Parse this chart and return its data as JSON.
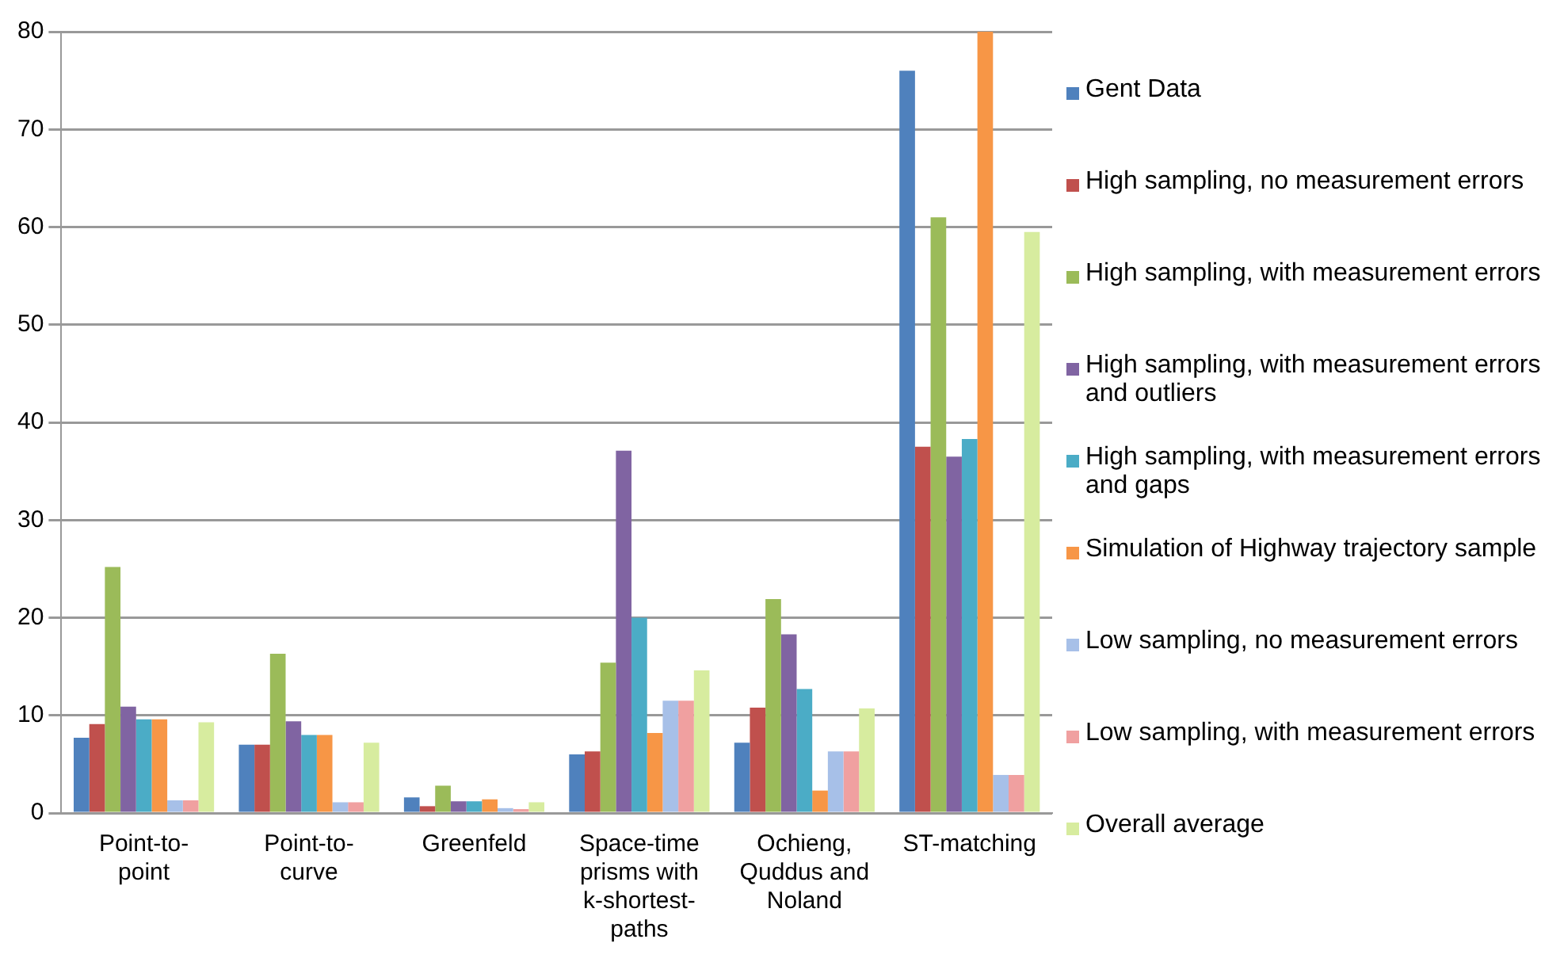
{
  "chart_data": {
    "type": "bar",
    "categories": [
      "Point-to-point",
      "Point-to-curve",
      "Greenfeld",
      "Space-time prisms with k-shortest-paths",
      "Ochieng, Quddus and Noland",
      "ST-matching"
    ],
    "series": [
      {
        "name": "Gent Data",
        "color": "#4f81bd",
        "values": [
          7.7,
          7.0,
          1.6,
          6.0,
          7.2,
          76
        ]
      },
      {
        "name": "High sampling, no measurement errors",
        "color": "#c0504d",
        "values": [
          9.1,
          7.0,
          0.7,
          6.3,
          10.8,
          37.5
        ]
      },
      {
        "name": "High sampling, with measurement errors",
        "color": "#9bbb59",
        "values": [
          25.2,
          16.3,
          2.8,
          15.4,
          21.9,
          61
        ]
      },
      {
        "name": "High sampling, with measurement errors and outliers",
        "color": "#8064a2",
        "values": [
          10.9,
          9.4,
          1.2,
          37.1,
          18.3,
          36.5
        ]
      },
      {
        "name": "High sampling, with measurement errors and gaps",
        "color": "#4bacc6",
        "values": [
          9.6,
          8.0,
          1.2,
          20.0,
          12.7,
          38.3
        ]
      },
      {
        "name": "Simulation of Highway trajectory sample",
        "color": "#f79646",
        "values": [
          9.6,
          8.0,
          1.4,
          8.2,
          2.3,
          80
        ]
      },
      {
        "name": "Low sampling, no measurement errors",
        "color": "#a7c0e8",
        "values": [
          1.3,
          1.1,
          0.5,
          11.5,
          6.3,
          3.9
        ]
      },
      {
        "name": "Low sampling, with measurement errors",
        "color": "#f0a0a0",
        "values": [
          1.3,
          1.1,
          0.4,
          11.5,
          6.3,
          3.9
        ]
      },
      {
        "name": "Overall average",
        "color": "#d7ec9f",
        "values": [
          9.3,
          7.2,
          1.1,
          14.6,
          10.7,
          59.5
        ]
      }
    ],
    "ylim": [
      0,
      80
    ],
    "yticks": [
      0,
      10,
      20,
      30,
      40,
      50,
      60,
      70,
      80
    ],
    "grid": "y",
    "legend": "right"
  }
}
